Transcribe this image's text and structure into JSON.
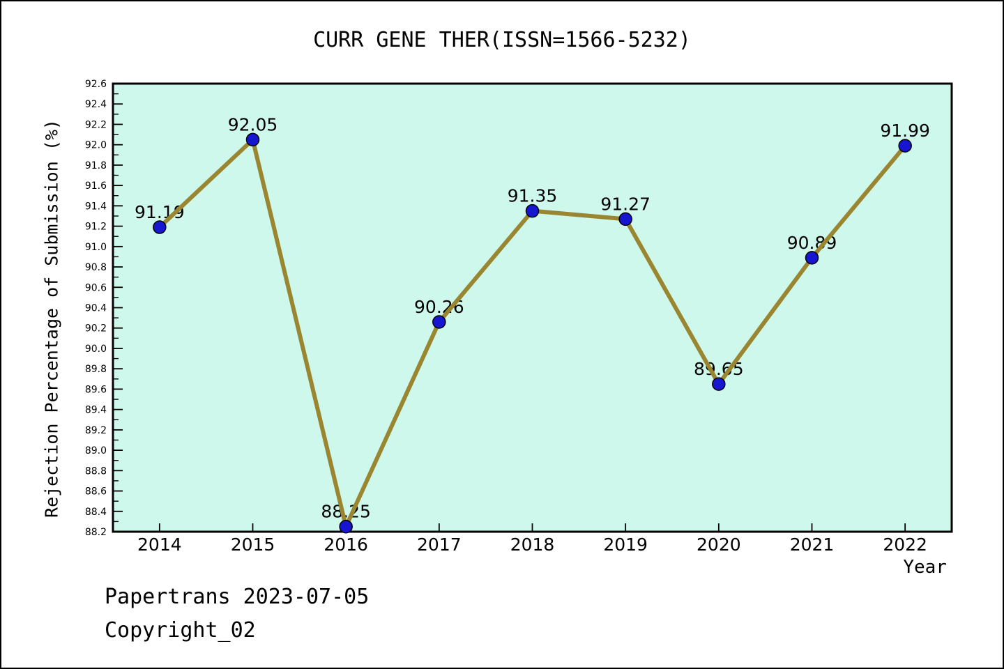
{
  "title": "CURR GENE THER(ISSN=1566-5232)",
  "footer": {
    "line1": "Papertrans 2023-07-05",
    "line2": "Copyright_02"
  },
  "chart_data": {
    "type": "line",
    "title": "CURR GENE THER(ISSN=1566-5232)",
    "xlabel": "Year",
    "ylabel": "Rejection Percentage of Submission (%)",
    "categories": [
      "2014",
      "2015",
      "2016",
      "2017",
      "2018",
      "2019",
      "2020",
      "2021",
      "2022"
    ],
    "series": [
      {
        "name": "Rejection Percentage of Submission",
        "values": [
          91.19,
          92.05,
          88.25,
          90.26,
          91.35,
          91.27,
          89.65,
          90.89,
          91.99
        ]
      }
    ],
    "point_labels": [
      "91.19",
      "92.05",
      "88.25",
      "90.26",
      "91.35",
      "91.27",
      "89.65",
      "90.89",
      "91.99"
    ],
    "ylim": [
      88.2,
      92.6
    ],
    "ytick_step": 0.2,
    "yminor_step": 0.1,
    "grid": false,
    "legend_position": "none",
    "colors": {
      "plot_bg": "#cdf8eb",
      "frame": "#000000",
      "line": "#9a8530",
      "marker_fill": "#1616d1",
      "marker_edge": "#000000",
      "text": "#000000"
    }
  }
}
